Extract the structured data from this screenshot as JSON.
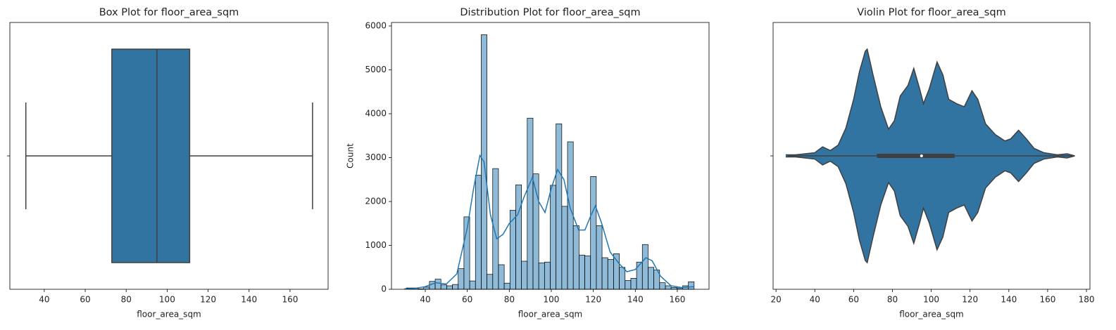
{
  "chart_data": [
    {
      "type": "box",
      "title": "Box Plot for floor_area_sqm",
      "xlabel": "floor_area_sqm",
      "categories": [
        null
      ],
      "q1": 73,
      "median": 95,
      "q3": 111,
      "whisker_low": 31,
      "whisker_high": 171,
      "color": "#3274a1",
      "xlim": [
        23.2,
        178.6
      ],
      "xticks": [
        40,
        60,
        80,
        100,
        120,
        140,
        160
      ]
    },
    {
      "type": "histogram",
      "title": "Distribution Plot for floor_area_sqm",
      "xlabel": "floor_area_sqm",
      "ylabel": "Count",
      "bins": [
        31,
        33.74,
        36.48,
        39.22,
        41.96,
        44.7,
        47.44,
        50.18,
        52.92,
        55.66,
        58.4,
        61.14,
        63.88,
        66.62,
        69.36,
        72.1,
        74.84,
        77.58,
        80.32,
        83.06,
        85.8,
        88.54,
        91.28,
        94.02,
        96.76,
        99.5,
        102.24,
        104.98,
        107.72,
        110.46,
        113.2,
        115.94,
        118.68,
        121.42,
        124.16,
        126.9,
        129.64,
        132.38,
        135.12,
        137.86,
        140.6,
        143.34,
        146.08,
        148.82,
        151.56,
        154.3,
        157.04,
        159.78,
        162.52,
        165.26,
        168
      ],
      "values": [
        30,
        30,
        10,
        50,
        180,
        230,
        100,
        80,
        110,
        470,
        1650,
        190,
        2600,
        5800,
        340,
        2750,
        560,
        140,
        1800,
        2380,
        640,
        3900,
        2630,
        600,
        620,
        2370,
        3770,
        1890,
        3360,
        1450,
        780,
        760,
        2570,
        1450,
        720,
        680,
        810,
        500,
        200,
        250,
        620,
        1020,
        500,
        440,
        150,
        80,
        40,
        30,
        80,
        170
      ],
      "color": "#1f77b4",
      "kde": {
        "color": "#1f77b4",
        "x": [
          30,
          35,
          40,
          45,
          50,
          55,
          60,
          63,
          66,
          68,
          71,
          74,
          77,
          80,
          84,
          87,
          91,
          94,
          97,
          100,
          103,
          106,
          109,
          113,
          116,
          119,
          121,
          124,
          128,
          132,
          136,
          140,
          145,
          148,
          152,
          157,
          162,
          168
        ],
        "values": [
          10,
          20,
          60,
          150,
          120,
          350,
          1400,
          2300,
          3050,
          2900,
          1700,
          1150,
          1250,
          1500,
          1700,
          2100,
          2550,
          2000,
          1750,
          2300,
          2730,
          2500,
          1850,
          1350,
          1350,
          1700,
          1900,
          1500,
          850,
          600,
          400,
          450,
          720,
          650,
          300,
          80,
          40,
          60
        ]
      },
      "xlim": [
        23.9,
        175.1
      ],
      "xticks": [
        40,
        60,
        80,
        100,
        120,
        140,
        160
      ],
      "ylim": [
        0,
        6080
      ],
      "yticks": [
        0,
        1000,
        2000,
        3000,
        4000,
        5000,
        6000
      ]
    },
    {
      "type": "violin",
      "title": "Violin Plot for floor_area_sqm",
      "xlabel": "floor_area_sqm",
      "categories": [
        null
      ],
      "x": [
        25,
        30,
        35,
        40,
        44,
        48,
        52,
        56,
        60,
        63,
        66,
        67,
        70,
        74,
        78,
        81,
        84,
        88,
        91,
        94,
        96,
        99,
        103,
        106,
        109,
        113,
        117,
        121,
        124,
        128,
        133,
        138,
        141,
        145,
        149,
        153,
        158,
        165,
        170,
        174
      ],
      "density": [
        0.01,
        0.01,
        0.02,
        0.03,
        0.085,
        0.05,
        0.1,
        0.26,
        0.53,
        0.79,
        0.98,
        1.0,
        0.76,
        0.46,
        0.25,
        0.33,
        0.56,
        0.66,
        0.82,
        0.63,
        0.49,
        0.63,
        0.88,
        0.76,
        0.53,
        0.49,
        0.46,
        0.61,
        0.53,
        0.3,
        0.2,
        0.14,
        0.16,
        0.24,
        0.16,
        0.07,
        0.03,
        0.01,
        0.02,
        0
      ],
      "q1": 72,
      "median": 95,
      "q3": 112,
      "whisker_low": 26,
      "whisker_high": 174,
      "color": "#3274a1",
      "xlim": [
        18.5,
        181.8
      ],
      "xticks": [
        20,
        40,
        60,
        80,
        100,
        120,
        140,
        160,
        180
      ]
    }
  ]
}
